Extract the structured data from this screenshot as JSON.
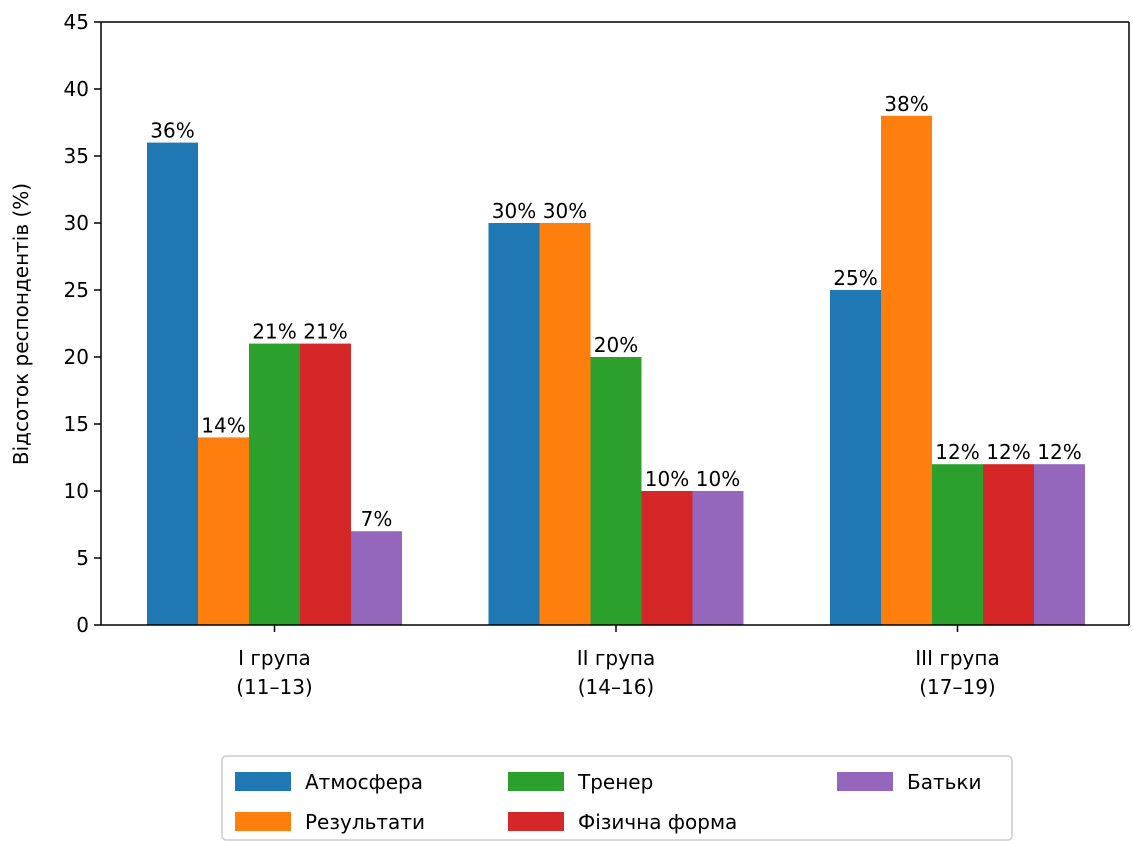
{
  "chart_data": {
    "type": "bar",
    "categories": [
      "I група\n(11–13)",
      "II група\n(14–16)",
      "III група\n(17–19)"
    ],
    "series": [
      {
        "name": "Атмосфера",
        "color": "#1f77b4",
        "values": [
          36,
          30,
          25
        ]
      },
      {
        "name": "Результати",
        "color": "#ff7f0e",
        "values": [
          14,
          30,
          38
        ]
      },
      {
        "name": "Тренер",
        "color": "#2ca02c",
        "values": [
          21,
          20,
          12
        ]
      },
      {
        "name": "Фізична форма",
        "color": "#d62728",
        "values": [
          21,
          10,
          12
        ]
      },
      {
        "name": "Батьки",
        "color": "#9467bd",
        "values": [
          7,
          10,
          12
        ]
      }
    ],
    "value_suffix": "%",
    "ylabel": "Відсоток респондентів (%)",
    "ylim": [
      0,
      45
    ],
    "yticks": [
      0,
      5,
      10,
      15,
      20,
      25,
      30,
      35,
      40,
      45
    ],
    "grid": false,
    "legend_position": "bottom-center"
  }
}
